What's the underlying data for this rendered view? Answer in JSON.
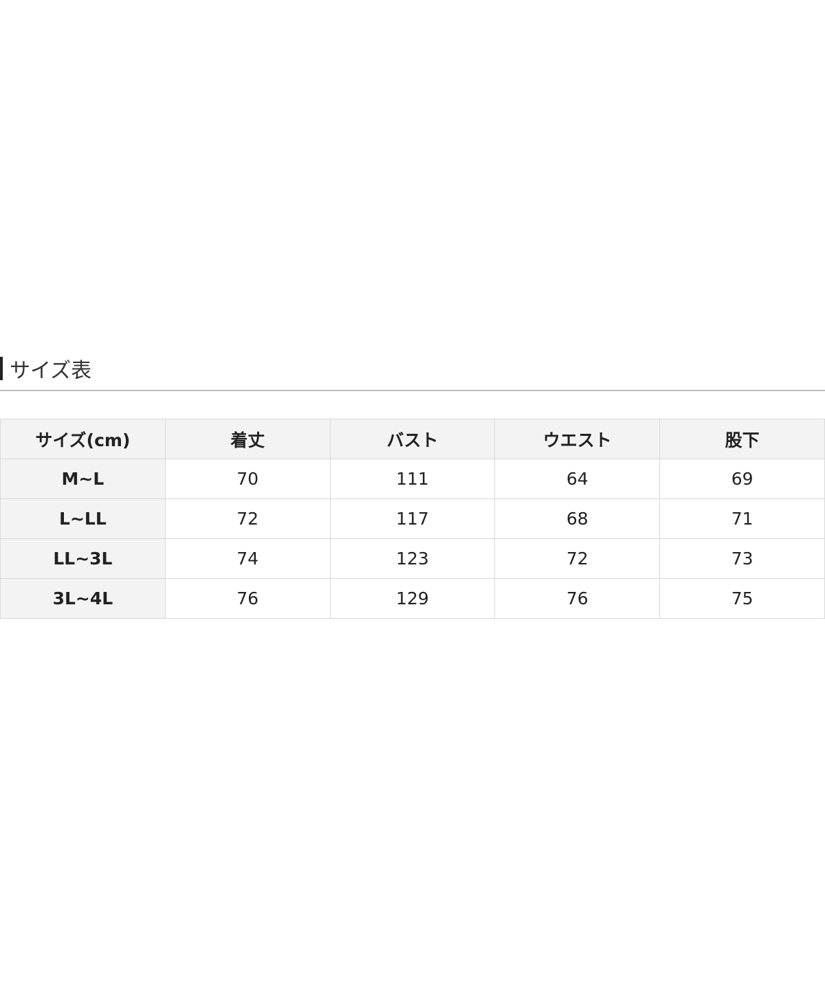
{
  "title": "サイズ表",
  "table": {
    "headers": [
      "サイズ(cm)",
      "着丈",
      "バスト",
      "ウエスト",
      "股下"
    ],
    "rows": [
      [
        "M~L",
        "70",
        "111",
        "64",
        "69"
      ],
      [
        "L~LL",
        "72",
        "117",
        "68",
        "71"
      ],
      [
        "LL~3L",
        "74",
        "123",
        "72",
        "73"
      ],
      [
        "3L~4L",
        "76",
        "129",
        "76",
        "75"
      ]
    ]
  }
}
